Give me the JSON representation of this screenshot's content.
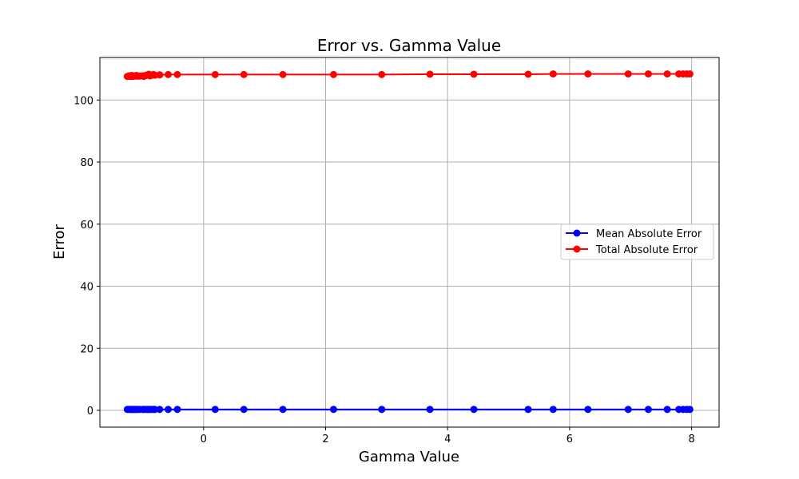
{
  "chart_data": {
    "type": "line",
    "title": "Error vs. Gamma Value",
    "xlabel": "Gamma Value",
    "ylabel": "Error",
    "xlim": [
      -1.7,
      8.45
    ],
    "ylim": [
      -5.4,
      113.7
    ],
    "xticks": [
      0,
      2,
      4,
      6,
      8
    ],
    "yticks": [
      0,
      20,
      40,
      60,
      80,
      100
    ],
    "grid": true,
    "legend_position": "center-right",
    "series": [
      {
        "name": "Mean Absolute Error",
        "color": "#0000ff",
        "marker": "circle",
        "x": [
          -1.25,
          -1.22,
          -1.2,
          -1.18,
          -1.16,
          -1.14,
          -1.12,
          -1.1,
          -1.08,
          -1.05,
          -1.0,
          -0.98,
          -0.95,
          -0.92,
          -0.9,
          -0.88,
          -0.85,
          -0.82,
          -0.8,
          -0.72,
          -0.58,
          -0.43,
          0.19,
          0.66,
          1.3,
          2.13,
          2.92,
          3.71,
          4.43,
          5.32,
          5.73,
          6.3,
          6.96,
          7.29,
          7.6,
          7.79,
          7.86,
          7.92,
          7.97
        ],
        "y": [
          0.3,
          0.3,
          0.3,
          0.3,
          0.3,
          0.3,
          0.3,
          0.3,
          0.3,
          0.3,
          0.3,
          0.3,
          0.3,
          0.3,
          0.3,
          0.3,
          0.3,
          0.3,
          0.3,
          0.3,
          0.3,
          0.3,
          0.3,
          0.3,
          0.3,
          0.3,
          0.3,
          0.3,
          0.3,
          0.3,
          0.3,
          0.3,
          0.3,
          0.3,
          0.3,
          0.3,
          0.3,
          0.3,
          0.3
        ]
      },
      {
        "name": "Total Absolute Error",
        "color": "#ff0000",
        "marker": "circle",
        "x": [
          -1.25,
          -1.22,
          -1.2,
          -1.18,
          -1.16,
          -1.14,
          -1.12,
          -1.1,
          -1.08,
          -1.05,
          -1.0,
          -0.98,
          -0.95,
          -0.92,
          -0.9,
          -0.88,
          -0.85,
          -0.82,
          -0.8,
          -0.72,
          -0.58,
          -0.43,
          0.19,
          0.66,
          1.3,
          2.13,
          2.92,
          3.71,
          4.43,
          5.32,
          5.73,
          6.3,
          6.96,
          7.29,
          7.6,
          7.79,
          7.86,
          7.92,
          7.97
        ],
        "y": [
          107.6,
          107.8,
          107.6,
          107.9,
          107.6,
          107.8,
          107.7,
          107.9,
          107.7,
          107.7,
          107.8,
          107.6,
          107.9,
          108.1,
          108.3,
          107.8,
          108.0,
          108.2,
          108.0,
          108.1,
          108.2,
          108.2,
          108.2,
          108.2,
          108.2,
          108.2,
          108.2,
          108.3,
          108.3,
          108.3,
          108.4,
          108.4,
          108.4,
          108.4,
          108.4,
          108.4,
          108.4,
          108.4,
          108.4
        ]
      }
    ]
  }
}
